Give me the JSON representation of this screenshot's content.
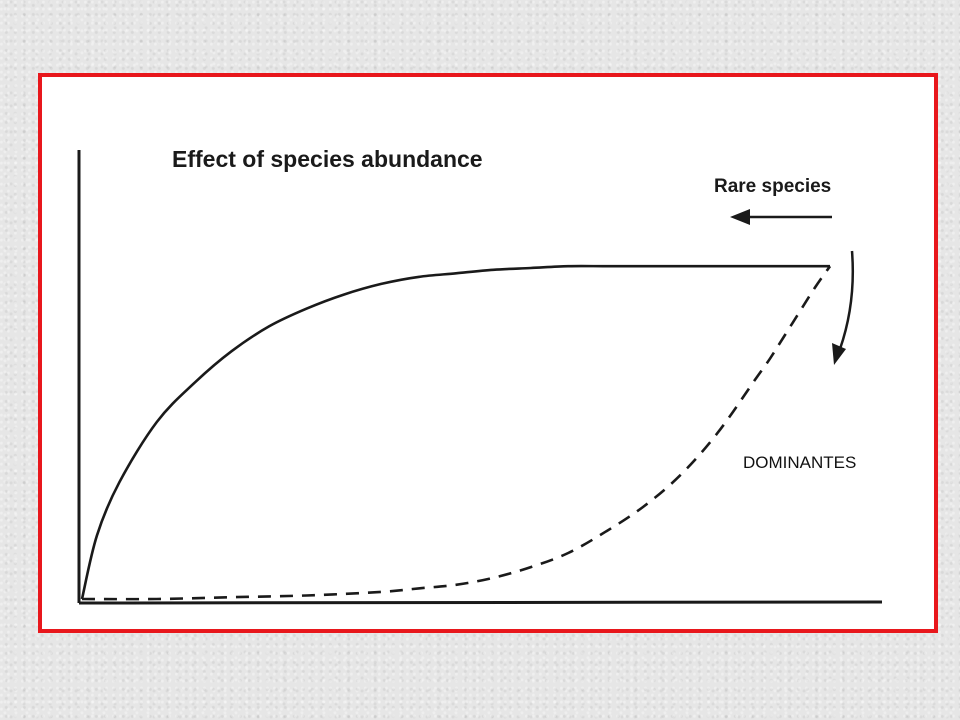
{
  "chart_data": {
    "type": "line",
    "title": "Effect of species abundance",
    "xlabel": "",
    "ylabel": "",
    "xlim": [
      0,
      100
    ],
    "ylim": [
      0,
      100
    ],
    "grid": false,
    "legend": "none",
    "series": [
      {
        "style": "solid",
        "x": [
          0,
          2,
          5,
          10,
          15,
          20,
          25,
          30,
          35,
          40,
          45,
          50,
          55,
          60,
          65,
          70,
          75,
          80,
          85,
          90,
          95,
          100
        ],
        "y": [
          0,
          18,
          33,
          50,
          61,
          70,
          77,
          82,
          86,
          89,
          91,
          92,
          93,
          93.5,
          94,
          94,
          94,
          94,
          94,
          94,
          94,
          94
        ]
      },
      {
        "style": "dashed",
        "x": [
          0,
          10,
          20,
          30,
          40,
          45,
          50,
          55,
          60,
          65,
          70,
          75,
          80,
          85,
          90,
          92,
          95,
          98,
          100
        ],
        "y": [
          0,
          0,
          0.5,
          1,
          2,
          3,
          4,
          6,
          9,
          13,
          19,
          26,
          35,
          47,
          62,
          68,
          78,
          88,
          94
        ]
      }
    ],
    "annotations": [
      {
        "text": "Rare species",
        "arrow": "left",
        "position": "top-right"
      },
      {
        "text": "DOMINANTES",
        "position": "right"
      }
    ],
    "colors": {
      "frame": "#e8171c",
      "line": "#1a1a1a",
      "plot_background": "#ffffff",
      "page_background": "#e6e6e6"
    }
  }
}
